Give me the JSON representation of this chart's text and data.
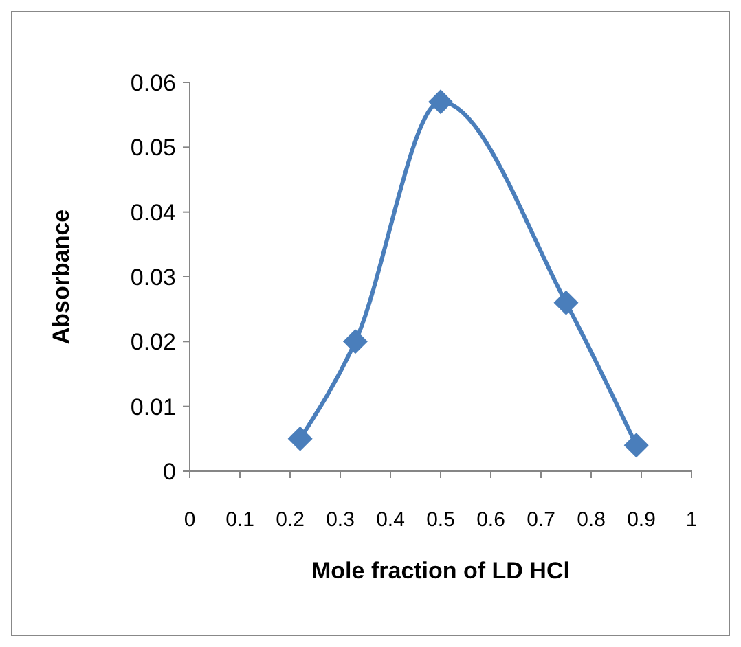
{
  "chart_data": {
    "type": "line",
    "xlabel": "Mole fraction of LD HCl",
    "ylabel": "Absorbance",
    "x": [
      0.22,
      0.33,
      0.5,
      0.75,
      0.89
    ],
    "series": [
      {
        "color": "#4a7ebb",
        "values": [
          0.005,
          0.02,
          0.057,
          0.026,
          0.004
        ]
      }
    ],
    "xlim": [
      0,
      1
    ],
    "xticks": [
      0,
      0.1,
      0.2,
      0.3,
      0.4,
      0.5,
      0.6,
      0.7,
      0.8,
      0.9,
      1
    ],
    "ylim": [
      0,
      0.06
    ],
    "yticks": [
      0,
      0.01,
      0.02,
      0.03,
      0.04,
      0.05,
      0.06
    ],
    "grid": false,
    "marker": "diamond",
    "line_style": "solid"
  }
}
